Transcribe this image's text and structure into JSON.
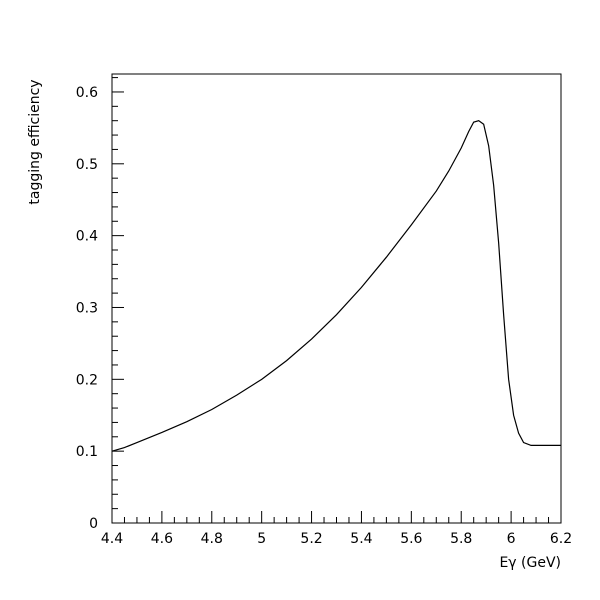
{
  "chart_data": {
    "type": "line",
    "xlabel": "Eγ (GeV)",
    "ylabel": "tagging efficiency",
    "xlim": [
      4.4,
      6.2
    ],
    "ylim": [
      0,
      0.625
    ],
    "grid": false,
    "x_ticks": [
      4.4,
      4.6,
      4.8,
      5.0,
      5.2,
      5.4,
      5.6,
      5.8,
      6.0,
      6.2
    ],
    "x_tick_labels": [
      "4.4",
      "4.6",
      "4.8",
      "5",
      "5.2",
      "5.4",
      "5.6",
      "5.8",
      "6",
      "6.2"
    ],
    "y_ticks": [
      0,
      0.1,
      0.2,
      0.3,
      0.4,
      0.5,
      0.6
    ],
    "y_tick_labels": [
      "0",
      "0.1",
      "0.2",
      "0.3",
      "0.4",
      "0.5",
      "0.6"
    ],
    "series": [
      {
        "color": "#000000",
        "x": [
          4.4,
          4.45,
          4.5,
          4.6,
          4.7,
          4.8,
          4.9,
          5.0,
          5.1,
          5.2,
          5.3,
          5.4,
          5.5,
          5.6,
          5.7,
          5.75,
          5.8,
          5.83,
          5.85,
          5.87,
          5.89,
          5.91,
          5.93,
          5.95,
          5.97,
          5.99,
          6.01,
          6.03,
          6.05,
          6.08,
          6.1,
          6.2
        ],
        "y": [
          0.1,
          0.105,
          0.112,
          0.126,
          0.141,
          0.158,
          0.178,
          0.2,
          0.226,
          0.256,
          0.29,
          0.328,
          0.37,
          0.415,
          0.462,
          0.49,
          0.522,
          0.545,
          0.558,
          0.56,
          0.555,
          0.525,
          0.47,
          0.39,
          0.29,
          0.2,
          0.15,
          0.125,
          0.112,
          0.108,
          0.108,
          0.108
        ]
      }
    ]
  }
}
